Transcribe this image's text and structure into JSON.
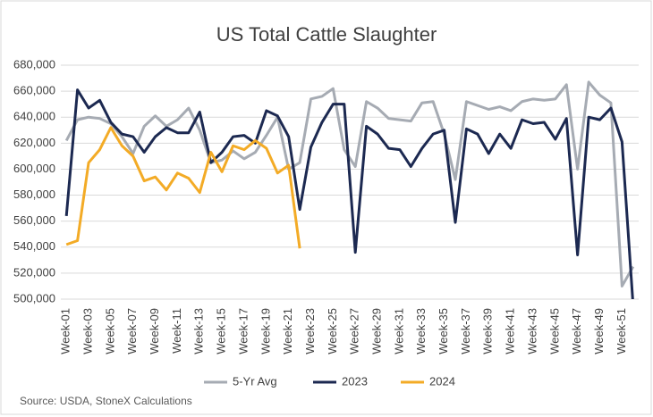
{
  "chart_data": {
    "type": "line",
    "title": "US Total Cattle Slaughter",
    "categories": [
      "Week-01",
      null,
      "Week-03",
      null,
      "Week-05",
      null,
      "Week-07",
      null,
      "Week-09",
      null,
      "Week-11",
      null,
      "Week-13",
      null,
      "Week-15",
      null,
      "Week-17",
      null,
      "Week-19",
      null,
      "Week-21",
      null,
      "Week-23",
      null,
      "Week-25",
      null,
      "Week-27",
      null,
      "Week-29",
      null,
      "Week-31",
      null,
      "Week-33",
      null,
      "Week-35",
      null,
      "Week-37",
      null,
      "Week-39",
      null,
      "Week-41",
      null,
      "Week-43",
      null,
      "Week-45",
      null,
      "Week-47",
      null,
      "Week-49",
      null,
      "Week-51",
      null
    ],
    "series": [
      {
        "name": "5-Yr Avg",
        "color": "#a6abb3",
        "values": [
          622000,
          638000,
          640000,
          639000,
          635000,
          625000,
          612000,
          633000,
          641000,
          633000,
          638000,
          647000,
          630000,
          605000,
          607000,
          614000,
          608000,
          613000,
          626000,
          640000,
          600000,
          605000,
          654000,
          656000,
          662000,
          615000,
          602000,
          652000,
          647000,
          639000,
          638000,
          637000,
          651000,
          652000,
          627000,
          592000,
          652000,
          649000,
          646000,
          648000,
          645000,
          652000,
          654000,
          653000,
          654000,
          665000,
          600000,
          667000,
          657000,
          651000,
          510000,
          525000
        ]
      },
      {
        "name": "2023",
        "color": "#1c2951",
        "values": [
          564000,
          661000,
          647000,
          653000,
          636000,
          627000,
          625000,
          613000,
          625000,
          632000,
          628000,
          628000,
          644000,
          605000,
          613000,
          625000,
          626000,
          620000,
          645000,
          641000,
          625000,
          569000,
          617000,
          636000,
          650000,
          650000,
          536000,
          633000,
          627000,
          616000,
          615000,
          602000,
          616000,
          627000,
          630000,
          559000,
          631000,
          627000,
          612000,
          627000,
          616000,
          638000,
          635000,
          636000,
          623000,
          639000,
          534000,
          640000,
          638000,
          647000,
          621000,
          495000
        ]
      },
      {
        "name": "2024",
        "color": "#f3ab26",
        "values": [
          542000,
          545000,
          605000,
          615000,
          632000,
          618000,
          610000,
          591000,
          594000,
          584000,
          597000,
          593000,
          582000,
          613000,
          598000,
          618000,
          615000,
          622000,
          616000,
          597000,
          603000,
          539000,
          null,
          null,
          null,
          null,
          null,
          null,
          null,
          null,
          null,
          null,
          null,
          null,
          null,
          null,
          null,
          null,
          null,
          null,
          null,
          null,
          null,
          null,
          null,
          null,
          null,
          null,
          null,
          null,
          null,
          null
        ]
      }
    ],
    "ylim": [
      500000,
      680000
    ],
    "yticks": [
      {
        "value": 500000,
        "label": "500,000"
      },
      {
        "value": 520000,
        "label": "520,000"
      },
      {
        "value": 540000,
        "label": "540,000"
      },
      {
        "value": 560000,
        "label": "560,000"
      },
      {
        "value": 580000,
        "label": "580,000"
      },
      {
        "value": 600000,
        "label": "600,000"
      },
      {
        "value": 620000,
        "label": "620,000"
      },
      {
        "value": 640000,
        "label": "640,000"
      },
      {
        "value": 660000,
        "label": "660,000"
      },
      {
        "value": 680000,
        "label": "680,000"
      }
    ],
    "grid": true,
    "legend": "bottom",
    "source": "Source: USDA, StoneX Calculations"
  }
}
